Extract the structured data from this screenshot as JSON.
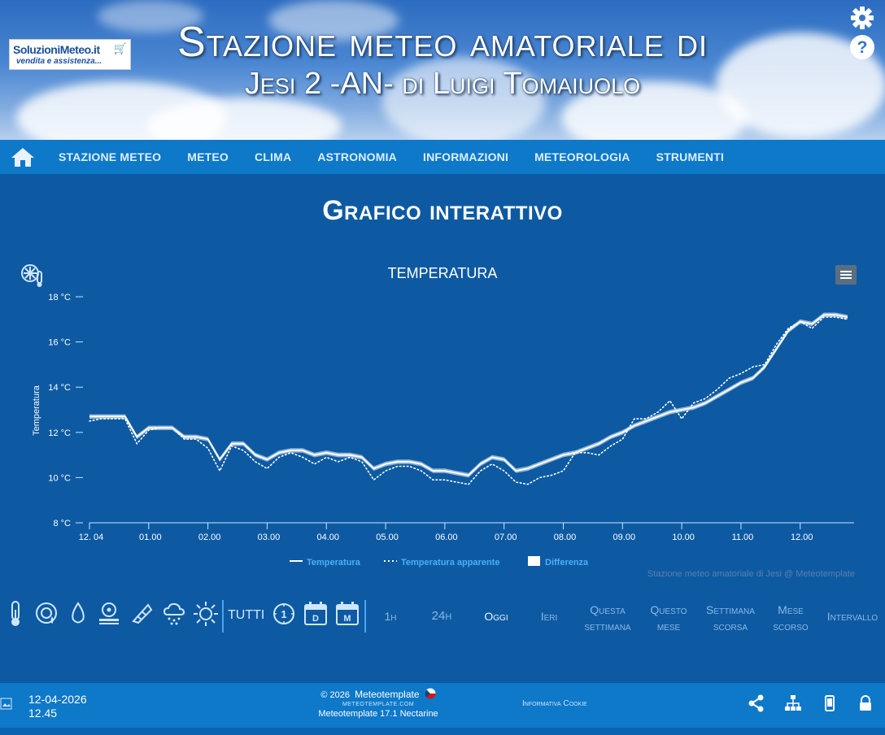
{
  "header": {
    "title_line1": "Stazione meteo amatoriale di",
    "title_line2": "Jesi 2 -AN- di Luigi Tomaiuolo",
    "logo_line1": "SoluzioniMeteo.it",
    "logo_line2": "vendita e assistenza...",
    "icons": [
      "settings-gear-icon",
      "help-question-icon"
    ]
  },
  "nav": {
    "home_icon": "home-icon",
    "items": [
      "STAZIONE METEO",
      "METEO",
      "CLIMA",
      "ASTRONOMIA",
      "INFORMAZIONI",
      "METEOROLOGIA",
      "STRUMENTI"
    ]
  },
  "page": {
    "title": "Grafico interattivo"
  },
  "chart_data": {
    "type": "line",
    "title": "TEMPERATURA",
    "xlabel": "",
    "ylabel": "Temperatura",
    "y_unit": "°C",
    "ylim": [
      8,
      18
    ],
    "y_ticks": [
      "8 °C",
      "10 °C",
      "12 °C",
      "14 °C",
      "16 °C",
      "18 °C"
    ],
    "x_ticks": [
      "12. 04",
      "01.00",
      "02.00",
      "03.00",
      "04.00",
      "05.00",
      "06.00",
      "07.00",
      "08.00",
      "09.00",
      "10.00",
      "11.00",
      "12.00"
    ],
    "legend_placement": "bottom",
    "series": [
      {
        "name": "Temperatura",
        "style": "solid",
        "x": [
          0,
          0.2,
          0.4,
          0.6,
          0.8,
          1.0,
          1.2,
          1.4,
          1.6,
          1.8,
          2.0,
          2.2,
          2.4,
          2.6,
          2.8,
          3.0,
          3.2,
          3.4,
          3.6,
          3.8,
          4.0,
          4.2,
          4.4,
          4.6,
          4.8,
          5.0,
          5.2,
          5.4,
          5.6,
          5.8,
          6.0,
          6.2,
          6.4,
          6.6,
          6.8,
          7.0,
          7.2,
          7.4,
          7.6,
          7.8,
          8.0,
          8.2,
          8.4,
          8.6,
          8.8,
          9.0,
          9.2,
          9.4,
          9.6,
          9.8,
          10.0,
          10.2,
          10.4,
          10.6,
          10.8,
          11.0,
          11.2,
          11.4,
          11.6,
          11.8,
          12.0,
          12.2,
          12.4,
          12.6,
          12.8
        ],
        "values": [
          12.7,
          12.7,
          12.7,
          12.7,
          11.8,
          12.2,
          12.2,
          12.2,
          11.8,
          11.8,
          11.7,
          10.8,
          11.5,
          11.5,
          11.0,
          10.8,
          11.1,
          11.2,
          11.2,
          11.0,
          11.1,
          11.0,
          11.0,
          10.9,
          10.4,
          10.6,
          10.7,
          10.7,
          10.6,
          10.3,
          10.3,
          10.2,
          10.1,
          10.6,
          10.9,
          10.8,
          10.3,
          10.4,
          10.6,
          10.8,
          11.0,
          11.1,
          11.3,
          11.5,
          11.8,
          12.0,
          12.3,
          12.5,
          12.7,
          12.9,
          13.0,
          13.1,
          13.3,
          13.6,
          13.9,
          14.2,
          14.4,
          14.9,
          15.7,
          16.5,
          16.9,
          16.8,
          17.2,
          17.2,
          17.1
        ]
      },
      {
        "name": "Temperatura apparente",
        "style": "dotted",
        "x": [
          0,
          0.2,
          0.4,
          0.6,
          0.8,
          1.0,
          1.2,
          1.4,
          1.6,
          1.8,
          2.0,
          2.2,
          2.4,
          2.6,
          2.8,
          3.0,
          3.2,
          3.4,
          3.6,
          3.8,
          4.0,
          4.2,
          4.4,
          4.6,
          4.8,
          5.0,
          5.2,
          5.4,
          5.6,
          5.8,
          6.0,
          6.2,
          6.4,
          6.6,
          6.8,
          7.0,
          7.2,
          7.4,
          7.6,
          7.8,
          8.0,
          8.2,
          8.4,
          8.6,
          8.8,
          9.0,
          9.2,
          9.4,
          9.6,
          9.8,
          10.0,
          10.2,
          10.4,
          10.6,
          10.8,
          11.0,
          11.2,
          11.4,
          11.6,
          11.8,
          12.0,
          12.2,
          12.4,
          12.6,
          12.8
        ],
        "values": [
          12.5,
          12.6,
          12.6,
          12.6,
          11.5,
          12.1,
          12.2,
          12.2,
          11.7,
          11.7,
          11.3,
          10.3,
          11.4,
          11.2,
          10.7,
          10.4,
          10.9,
          11.1,
          10.9,
          10.6,
          10.9,
          10.7,
          10.9,
          10.7,
          9.9,
          10.3,
          10.5,
          10.5,
          10.3,
          9.9,
          9.9,
          9.8,
          9.7,
          10.3,
          10.6,
          10.3,
          9.8,
          9.7,
          10.0,
          10.1,
          10.3,
          11.1,
          11.1,
          11.0,
          11.4,
          11.7,
          12.6,
          12.6,
          12.9,
          13.4,
          12.6,
          13.3,
          13.5,
          13.9,
          14.4,
          14.6,
          14.9,
          15.0,
          15.9,
          16.6,
          16.9,
          16.6,
          17.1,
          17.1,
          17.0
        ]
      },
      {
        "name": "Differenza",
        "style": "area-band",
        "x": [
          0,
          0.2,
          0.4,
          0.6,
          0.8,
          1.0,
          1.2,
          1.4,
          1.6,
          1.8,
          2.0,
          2.2,
          2.4,
          2.6,
          2.8,
          3.0,
          3.2,
          3.4,
          3.6,
          3.8,
          4.0,
          4.2,
          4.4,
          4.6,
          4.8,
          5.0,
          5.2,
          5.4,
          5.6,
          5.8,
          6.0,
          6.2,
          6.4,
          6.6,
          6.8,
          7.0,
          7.2,
          7.4,
          7.6,
          7.8,
          8.0,
          8.2,
          8.4,
          8.6,
          8.8,
          9.0,
          9.2,
          9.4,
          9.6,
          9.8,
          10.0,
          10.2,
          10.4,
          10.6,
          10.8,
          11.0,
          11.2,
          11.4,
          11.6,
          11.8,
          12.0,
          12.2,
          12.4,
          12.6,
          12.8
        ],
        "low": [
          12.6,
          12.6,
          12.6,
          12.6,
          11.7,
          12.1,
          12.1,
          12.1,
          11.7,
          11.7,
          11.6,
          10.7,
          11.4,
          11.4,
          10.9,
          10.7,
          11.0,
          11.1,
          11.1,
          10.9,
          11.0,
          10.9,
          10.9,
          10.8,
          10.3,
          10.5,
          10.6,
          10.6,
          10.5,
          10.2,
          10.2,
          10.1,
          10.0,
          10.5,
          10.8,
          10.7,
          10.2,
          10.3,
          10.5,
          10.7,
          10.9,
          11.0,
          11.2,
          11.4,
          11.7,
          11.9,
          12.2,
          12.4,
          12.6,
          12.8,
          12.9,
          13.0,
          13.2,
          13.5,
          13.8,
          14.1,
          14.3,
          14.8,
          15.6,
          16.4,
          16.8,
          16.7,
          17.1,
          17.1,
          17.0
        ],
        "high": [
          12.8,
          12.8,
          12.8,
          12.8,
          11.9,
          12.3,
          12.3,
          12.3,
          11.9,
          11.9,
          11.8,
          10.9,
          11.6,
          11.6,
          11.1,
          10.9,
          11.2,
          11.3,
          11.3,
          11.1,
          11.2,
          11.1,
          11.1,
          11.0,
          10.5,
          10.7,
          10.8,
          10.8,
          10.7,
          10.4,
          10.4,
          10.3,
          10.2,
          10.7,
          11.0,
          10.9,
          10.4,
          10.5,
          10.7,
          10.9,
          11.1,
          11.2,
          11.4,
          11.6,
          11.9,
          12.1,
          12.4,
          12.6,
          12.8,
          13.0,
          13.1,
          13.2,
          13.4,
          13.7,
          14.0,
          14.3,
          14.5,
          15.0,
          15.8,
          16.6,
          17.0,
          16.9,
          17.3,
          17.3,
          17.2
        ]
      }
    ],
    "credit": "Stazione meteo amatoriale di Jesi @ Meteotemplate"
  },
  "toolbar": {
    "icons": [
      "thermometer-icon",
      "humidity-gauge-icon",
      "water-drop-icon",
      "barometer-icon",
      "windsock-icon",
      "rain-cloud-icon",
      "sun-icon"
    ],
    "all_label": "TUTTI",
    "period_icons": [
      "clock-1h-icon",
      "calendar-day-icon",
      "calendar-month-icon"
    ],
    "ranges": [
      {
        "l1": "1h",
        "l2": ""
      },
      {
        "l1": "24h",
        "l2": ""
      },
      {
        "l1": "Oggi",
        "l2": ""
      },
      {
        "l1": "Ieri",
        "l2": ""
      },
      {
        "l1": "Questa",
        "l2": "settimana"
      },
      {
        "l1": "Questo",
        "l2": "mese"
      },
      {
        "l1": "Settimana",
        "l2": "scorsa"
      },
      {
        "l1": "Mese",
        "l2": "scorso"
      },
      {
        "l1": "Intervallo",
        "l2": ""
      }
    ]
  },
  "footer": {
    "date": "12-04-2026",
    "time": "12.45",
    "copyright": "© 2026",
    "brand": "Meteotemplate",
    "site": "METEOTEMPLATE.COM",
    "version": "Meteotemplate 17.1 Nectarine",
    "cookie": "Informativa Cookie",
    "icons": [
      "share-icon",
      "sitemap-icon",
      "mobile-icon",
      "lock-icon"
    ]
  }
}
